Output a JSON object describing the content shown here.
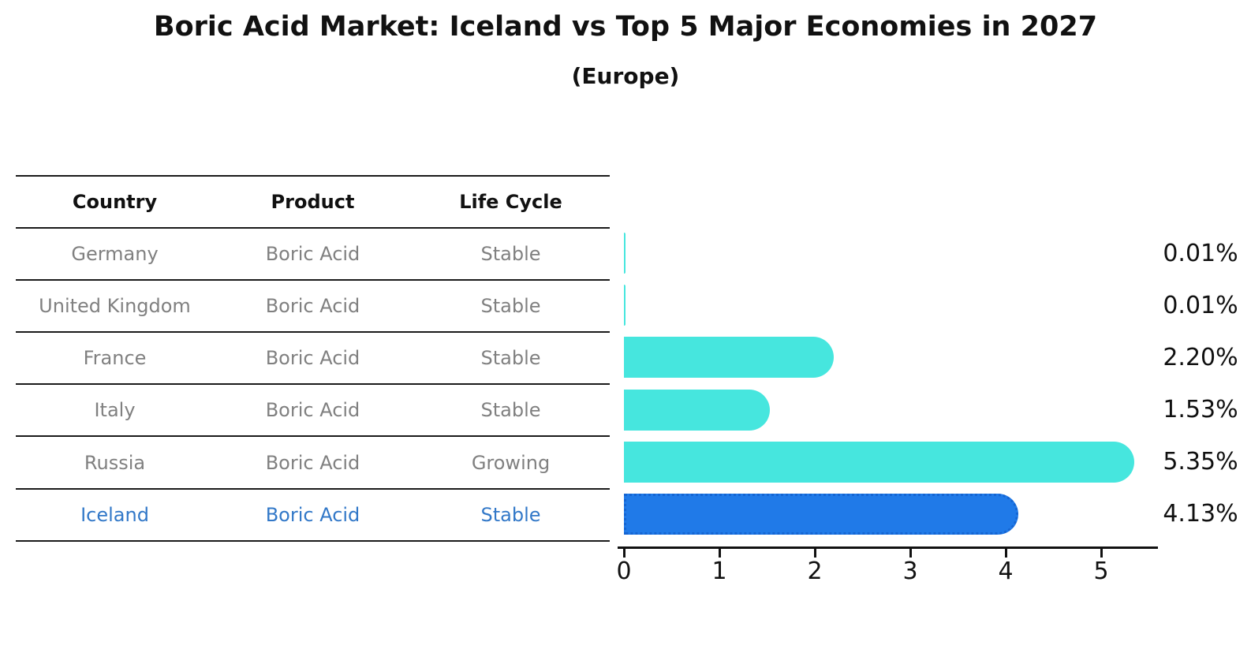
{
  "title": "Boric Acid Market: Iceland vs Top 5 Major Economies in 2027",
  "subtitle": "(Europe)",
  "table": {
    "headers": [
      "Country",
      "Product",
      "Life Cycle"
    ],
    "rows": [
      {
        "country": "Germany",
        "product": "Boric Acid",
        "life_cycle": "Stable",
        "highlight": false
      },
      {
        "country": "United Kingdom",
        "product": "Boric Acid",
        "life_cycle": "Stable",
        "highlight": false
      },
      {
        "country": "France",
        "product": "Boric Acid",
        "life_cycle": "Stable",
        "highlight": false
      },
      {
        "country": "Italy",
        "product": "Boric Acid",
        "life_cycle": "Stable",
        "highlight": false
      },
      {
        "country": "Russia",
        "product": "Boric Acid",
        "life_cycle": "Growing",
        "highlight": false
      },
      {
        "country": "Iceland",
        "product": "Boric Acid",
        "life_cycle": "Stable",
        "highlight": true
      }
    ]
  },
  "chart_data": {
    "type": "bar",
    "orientation": "horizontal",
    "title": "Boric Acid Market: Iceland vs Top 5 Major Economies in 2027",
    "subtitle": "(Europe)",
    "categories": [
      "Germany",
      "United Kingdom",
      "France",
      "Italy",
      "Russia",
      "Iceland"
    ],
    "values": [
      0.01,
      0.01,
      2.2,
      1.53,
      5.35,
      4.13
    ],
    "value_labels": [
      "0.01%",
      "0.01%",
      "2.20%",
      "1.53%",
      "5.35%",
      "4.13%"
    ],
    "xlabel": "",
    "ylabel": "",
    "xlim": [
      0,
      5.6
    ],
    "xticks": [
      0,
      1,
      2,
      3,
      4,
      5
    ],
    "highlight_category": "Iceland",
    "grid": false,
    "legend": false
  },
  "colors": {
    "bar_default": "#46E6DE",
    "bar_highlight": "#207AE8",
    "bar_highlight_border": "#1565D2",
    "highlight_text": "#3278C8",
    "row_text": "#808080",
    "header_text": "#111111",
    "table_line": "#1a1a1a",
    "axis": "#111111",
    "background": "#ffffff"
  }
}
